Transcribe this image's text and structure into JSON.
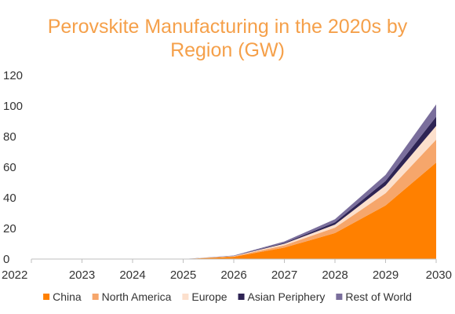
{
  "chart_data": {
    "type": "area",
    "stacked": true,
    "title_lines": [
      "Perovskite Manufacturing in the 2020s by",
      "Region (GW)"
    ],
    "xlabel": "",
    "ylabel": "",
    "x": [
      "2022",
      "2023",
      "2024",
      "2025",
      "2026",
      "2027",
      "2028",
      "2029",
      "2030"
    ],
    "ylim": [
      0,
      120
    ],
    "yticks": [
      "0",
      "20",
      "40",
      "60",
      "80",
      "100",
      "120"
    ],
    "grid": false,
    "legend_position": "bottom",
    "series": [
      {
        "name": "China",
        "color": "#FF8000",
        "values": [
          0,
          0,
          0,
          0,
          1.5,
          7.5,
          17,
          35,
          63
        ]
      },
      {
        "name": "North America",
        "color": "#F6A66B",
        "values": [
          0,
          0,
          0,
          0,
          0.3,
          1.5,
          3.5,
          8,
          15
        ]
      },
      {
        "name": "Europe",
        "color": "#FCE0CD",
        "values": [
          0,
          0,
          0,
          0,
          0.2,
          1,
          2,
          5,
          9
        ]
      },
      {
        "name": "Asian Periphery",
        "color": "#2E2454",
        "values": [
          0,
          0,
          0,
          0,
          0.1,
          0.5,
          1.5,
          3,
          6
        ]
      },
      {
        "name": "Rest of World",
        "color": "#7A6E9C",
        "values": [
          0,
          0,
          0,
          0,
          0.2,
          1,
          2,
          4,
          8
        ]
      }
    ]
  }
}
